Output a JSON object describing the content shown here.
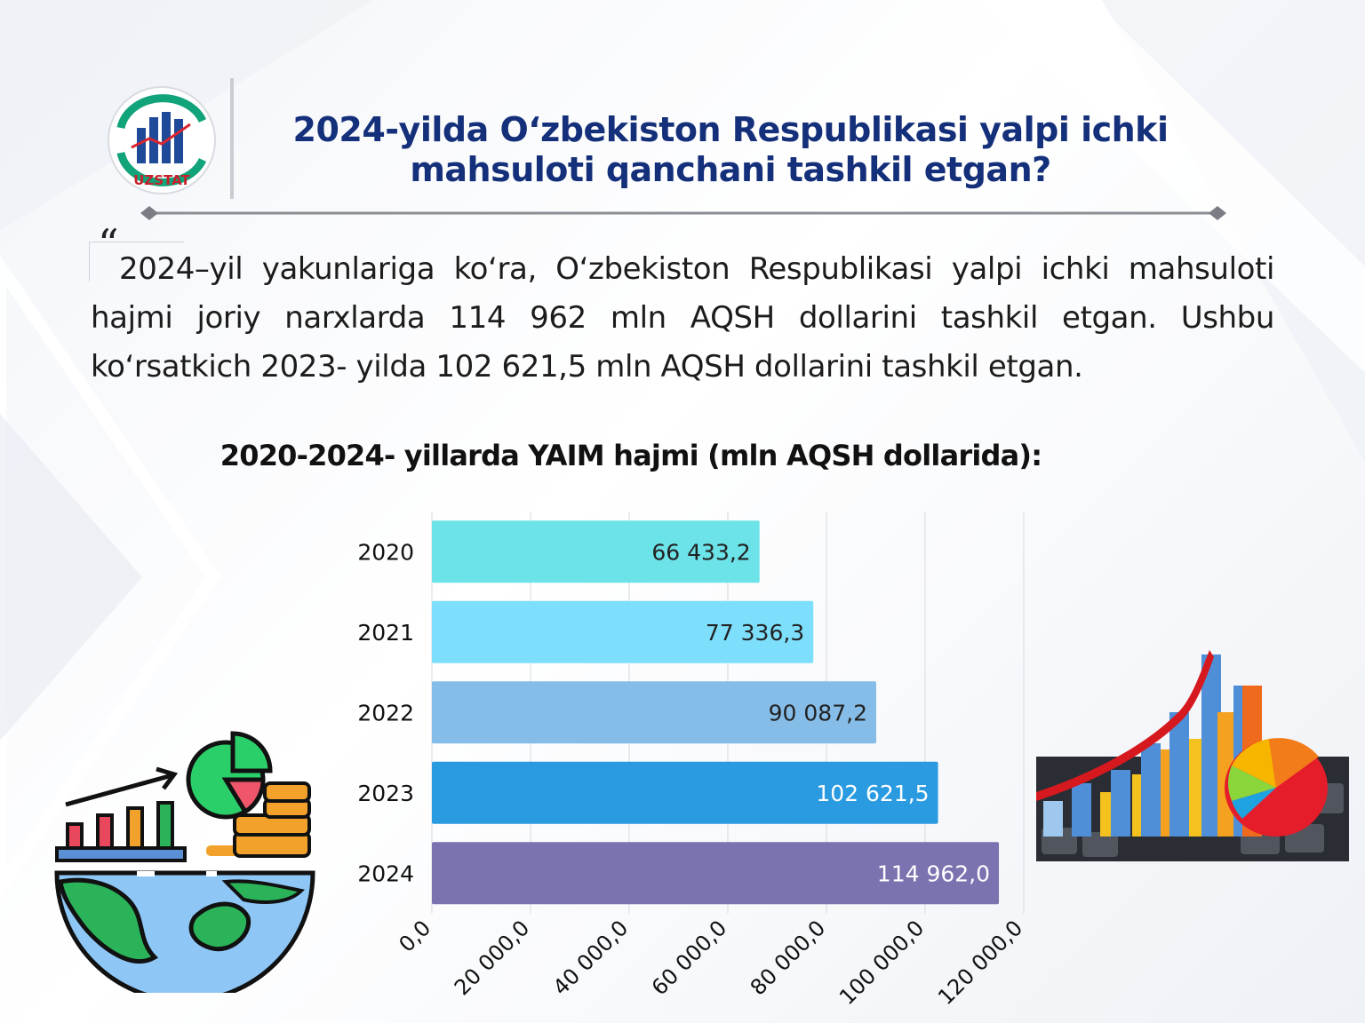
{
  "header": {
    "logo_text": "UZSTAT",
    "title": "2024-yilda O‘zbekiston Respublikasi yalpi ichki mahsuloti qanchani tashkil etgan?"
  },
  "paragraph": {
    "quote_mark": "“",
    "text": "2024–yil yakunlariga ko‘ra, O‘zbekiston Respublikasi yalpi ichki mahsuloti hajmi joriy narxlarda 114 962 mln AQSH dollarini tashkil etgan. Ushbu ko‘rsatkich 2023- yilda 102 621,5 mln AQSH dollarini tashkil etgan."
  },
  "chart_data": {
    "type": "bar",
    "orientation": "horizontal",
    "title": "2020-2024- yillarda YAIM hajmi (mln AQSH dollarida):",
    "categories": [
      "2020",
      "2021",
      "2022",
      "2023",
      "2024"
    ],
    "values": [
      66433.2,
      77336.3,
      90087.2,
      102621.5,
      114962.0
    ],
    "value_labels": [
      "66 433,2",
      "77 336,3",
      "90 087,2",
      "102 621,5",
      "114 962,0"
    ],
    "bar_colors": [
      "#6ce3e8",
      "#7ddffb",
      "#86bde8",
      "#2a9be0",
      "#7b72b0"
    ],
    "label_colors": [
      "#222222",
      "#222222",
      "#222222",
      "#ffffff",
      "#ffffff"
    ],
    "xlim": [
      0,
      120000
    ],
    "xticks": [
      0,
      20000,
      40000,
      60000,
      80000,
      100000,
      120000
    ],
    "xtick_labels": [
      "0,0",
      "20 000,0",
      "40 000,0",
      "60 000,0",
      "80 000,0",
      "100 000,0",
      "120 000,0"
    ],
    "grid": true,
    "legend": "none"
  },
  "decorations": {
    "left_icon": "growth-globe-coins-icon",
    "right_icon": "bar-chart-pie-keyboard-icon"
  }
}
